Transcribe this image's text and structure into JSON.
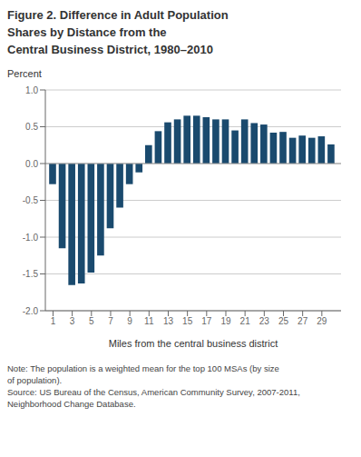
{
  "chart_data": {
    "type": "bar",
    "title": "Figure 2. Difference in Adult Population\nShares by Distance from the\nCentral Business District, 1980–2010",
    "xlabel": "Miles from the central business district",
    "ylabel": "Percent",
    "note": "Note: The population is a weighted mean for the top 100 MSAs (by size\nof population).\nSource: US Bureau of the Census, American Community Survey, 2007-2011,\nNeighborhood Change Database.",
    "x": [
      1,
      2,
      3,
      4,
      5,
      6,
      7,
      8,
      9,
      10,
      11,
      12,
      13,
      14,
      15,
      16,
      17,
      18,
      19,
      20,
      21,
      22,
      23,
      24,
      25,
      26,
      27,
      28,
      29,
      30
    ],
    "values": [
      -0.28,
      -1.15,
      -1.65,
      -1.63,
      -1.48,
      -1.25,
      -0.88,
      -0.6,
      -0.28,
      -0.12,
      0.25,
      0.44,
      0.56,
      0.6,
      0.65,
      0.65,
      0.63,
      0.6,
      0.6,
      0.45,
      0.6,
      0.55,
      0.53,
      0.42,
      0.43,
      0.35,
      0.38,
      0.35,
      0.37,
      0.26
    ],
    "color": "#1a4a6e",
    "xlim": [
      0.2,
      31
    ],
    "xticks": [
      1,
      3,
      5,
      7,
      9,
      11,
      13,
      15,
      17,
      19,
      21,
      23,
      25,
      27,
      29
    ],
    "ylim": [
      -2.0,
      1.0
    ],
    "yticks": [
      {
        "value": -2.0,
        "label": "-2.0"
      },
      -1.5,
      {
        "value": -1.0,
        "label": "-1.0"
      },
      -0.5,
      {
        "value": 0.0,
        "label": "0.0"
      },
      0.5,
      {
        "value": 1.0,
        "label": "1.0"
      }
    ],
    "grid": true
  }
}
